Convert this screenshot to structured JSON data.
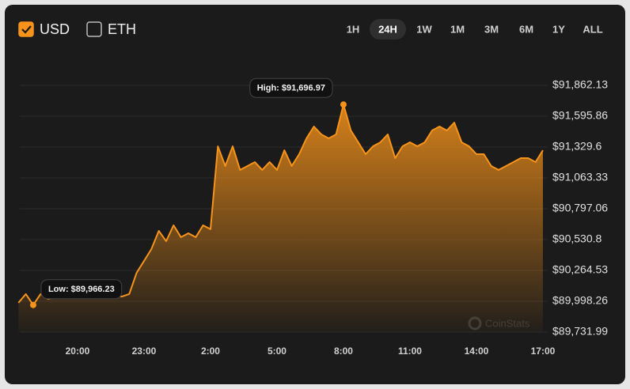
{
  "controls": {
    "currencies": [
      {
        "label": "USD",
        "checked": true
      },
      {
        "label": "ETH",
        "checked": false
      }
    ],
    "ranges": [
      "1H",
      "24H",
      "1W",
      "1M",
      "3M",
      "6M",
      "1Y",
      "ALL"
    ],
    "active_range": "24H"
  },
  "chart_data": {
    "type": "area",
    "color": "#f7931a",
    "grid": true,
    "watermark": "CoinStats",
    "annotations": {
      "high": "High: $91,696.97",
      "low": "Low: $89,966.23"
    },
    "categories": [
      null,
      null,
      null,
      null,
      null,
      null,
      null,
      null,
      "20:00",
      null,
      null,
      null,
      null,
      null,
      null,
      null,
      null,
      "23:00",
      null,
      null,
      null,
      null,
      null,
      null,
      null,
      null,
      "2:00",
      null,
      null,
      null,
      null,
      null,
      null,
      null,
      null,
      "5:00",
      null,
      null,
      null,
      null,
      null,
      null,
      null,
      null,
      "8:00",
      null,
      null,
      null,
      null,
      null,
      null,
      null,
      null,
      "11:00",
      null,
      null,
      null,
      null,
      null,
      null,
      null,
      null,
      "14:00",
      null,
      null,
      null,
      null,
      null,
      null,
      null,
      null,
      "17:00"
    ],
    "values": [
      89985,
      90060,
      89966.23,
      90060,
      90019,
      90032,
      90032,
      90032,
      90032,
      90032,
      90039,
      90039,
      90039,
      90039,
      90039,
      90060,
      90244,
      90346,
      90449,
      90606,
      90517,
      90654,
      90551,
      90585,
      90551,
      90654,
      90620,
      91336,
      91166,
      91336,
      91132,
      91166,
      91200,
      91132,
      91200,
      91132,
      91302,
      91166,
      91268,
      91405,
      91507,
      91439,
      91405,
      91439,
      91696.97,
      91473,
      91371,
      91268,
      91336,
      91371,
      91439,
      91234,
      91336,
      91371,
      91336,
      91371,
      91473,
      91507,
      91473,
      91541,
      91371,
      91336,
      91268,
      91268,
      91166,
      91132,
      91166,
      91200,
      91234,
      91234,
      91200,
      91302
    ],
    "ylim": [
      89731.99,
      91862.13
    ],
    "yticks": [
      {
        "value": 91862.13,
        "label": "$91,862.13"
      },
      {
        "value": 91595.86,
        "label": "$91,595.86"
      },
      {
        "value": 91329.6,
        "label": "$91,329.6"
      },
      {
        "value": 91063.33,
        "label": "$91,063.33"
      },
      {
        "value": 90797.06,
        "label": "$90,797.06"
      },
      {
        "value": 90530.8,
        "label": "$90,530.8"
      },
      {
        "value": 90264.53,
        "label": "$90,264.53"
      },
      {
        "value": 89998.26,
        "label": "$89,998.26"
      },
      {
        "value": 89731.99,
        "label": "$89,731.99"
      }
    ]
  }
}
